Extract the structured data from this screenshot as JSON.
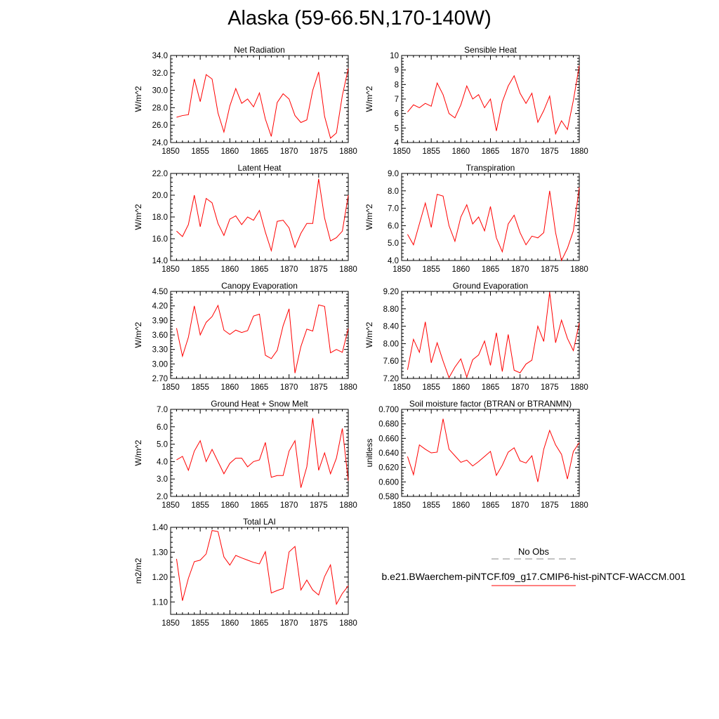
{
  "page": {
    "title": "Alaska (59-66.5N,170-140W)"
  },
  "legend": {
    "obs_label": "No Obs",
    "obs_line_color": "#888888",
    "model_label": "b.e21.BWaerchem-piNTCF.f09_g17.CMIP6-hist-piNTCF-WACCM.001",
    "model_line_color": "#ff0000"
  },
  "chart_data": [
    {
      "type": "line",
      "title": "Net Radiation",
      "ylabel": "W/m^2",
      "ylim": [
        24.0,
        34.0
      ],
      "yticks": [
        "24.0",
        "26.0",
        "28.0",
        "30.0",
        "32.0",
        "34.0"
      ],
      "xlim": [
        1850,
        1880
      ],
      "xticks": [
        "1850",
        "1855",
        "1860",
        "1865",
        "1870",
        "1875",
        "1880"
      ],
      "color": "#ff0000",
      "x": [
        1851,
        1852,
        1853,
        1854,
        1855,
        1856,
        1857,
        1858,
        1859,
        1860,
        1861,
        1862,
        1863,
        1864,
        1865,
        1866,
        1867,
        1868,
        1869,
        1870,
        1871,
        1872,
        1873,
        1874,
        1875,
        1876,
        1877,
        1878,
        1879,
        1880
      ],
      "values": [
        26.9,
        27.1,
        27.2,
        31.3,
        28.7,
        31.8,
        31.3,
        27.4,
        25.2,
        28.2,
        30.2,
        28.5,
        29.0,
        28.1,
        29.7,
        26.7,
        24.7,
        28.6,
        29.6,
        29.0,
        27.1,
        26.3,
        26.6,
        30.0,
        32.1,
        27.0,
        24.5,
        25.1,
        29.4,
        32.5
      ]
    },
    {
      "type": "line",
      "title": "Sensible Heat",
      "ylabel": "W/m^2",
      "ylim": [
        4,
        10
      ],
      "yticks": [
        "4",
        "5",
        "6",
        "7",
        "8",
        "9",
        "10"
      ],
      "xlim": [
        1850,
        1880
      ],
      "xticks": [
        "1850",
        "1855",
        "1860",
        "1865",
        "1870",
        "1875",
        "1880"
      ],
      "color": "#ff0000",
      "x": [
        1851,
        1852,
        1853,
        1854,
        1855,
        1856,
        1857,
        1858,
        1859,
        1860,
        1861,
        1862,
        1863,
        1864,
        1865,
        1866,
        1867,
        1868,
        1869,
        1870,
        1871,
        1872,
        1873,
        1874,
        1875,
        1876,
        1877,
        1878,
        1879,
        1880
      ],
      "values": [
        6.1,
        6.6,
        6.4,
        6.7,
        6.5,
        8.1,
        7.3,
        6.0,
        5.7,
        6.6,
        7.9,
        7.0,
        7.3,
        6.4,
        7.0,
        4.8,
        6.8,
        7.9,
        8.6,
        7.4,
        6.7,
        7.4,
        5.4,
        6.2,
        7.2,
        4.6,
        5.5,
        4.9,
        6.9,
        9.3
      ]
    },
    {
      "type": "line",
      "title": "Latent Heat",
      "ylabel": "W/m^2",
      "ylim": [
        14.0,
        22.0
      ],
      "yticks": [
        "14.0",
        "16.0",
        "18.0",
        "20.0",
        "22.0"
      ],
      "xlim": [
        1850,
        1880
      ],
      "xticks": [
        "1850",
        "1855",
        "1860",
        "1865",
        "1870",
        "1875",
        "1880"
      ],
      "color": "#ff0000",
      "x": [
        1851,
        1852,
        1853,
        1854,
        1855,
        1856,
        1857,
        1858,
        1859,
        1860,
        1861,
        1862,
        1863,
        1864,
        1865,
        1866,
        1867,
        1868,
        1869,
        1870,
        1871,
        1872,
        1873,
        1874,
        1875,
        1876,
        1877,
        1878,
        1879,
        1880
      ],
      "values": [
        16.7,
        16.2,
        17.3,
        20.0,
        17.1,
        19.7,
        19.3,
        17.4,
        16.3,
        17.8,
        18.1,
        17.3,
        18.0,
        17.7,
        18.6,
        16.6,
        14.9,
        17.6,
        17.7,
        17.0,
        15.2,
        16.5,
        17.4,
        17.4,
        21.5,
        17.9,
        15.8,
        16.1,
        16.7,
        20.0
      ]
    },
    {
      "type": "line",
      "title": "Transpiration",
      "ylabel": "W/m^2",
      "ylim": [
        4.0,
        9.0
      ],
      "yticks": [
        "4.0",
        "5.0",
        "6.0",
        "7.0",
        "8.0",
        "9.0"
      ],
      "xlim": [
        1850,
        1880
      ],
      "xticks": [
        "1850",
        "1855",
        "1860",
        "1865",
        "1870",
        "1875",
        "1880"
      ],
      "color": "#ff0000",
      "x": [
        1851,
        1852,
        1853,
        1854,
        1855,
        1856,
        1857,
        1858,
        1859,
        1860,
        1861,
        1862,
        1863,
        1864,
        1865,
        1866,
        1867,
        1868,
        1869,
        1870,
        1871,
        1872,
        1873,
        1874,
        1875,
        1876,
        1877,
        1878,
        1879,
        1880
      ],
      "values": [
        5.5,
        4.9,
        6.1,
        7.3,
        5.9,
        7.8,
        7.7,
        6.0,
        5.1,
        6.5,
        7.2,
        6.1,
        6.5,
        5.7,
        7.1,
        5.3,
        4.5,
        6.1,
        6.6,
        5.6,
        4.9,
        5.4,
        5.3,
        5.6,
        8.0,
        5.6,
        4.0,
        4.7,
        5.7,
        8.2
      ]
    },
    {
      "type": "line",
      "title": "Canopy Evaporation",
      "ylabel": "W/m^2",
      "ylim": [
        2.7,
        4.5
      ],
      "yticks": [
        "2.70",
        "3.00",
        "3.30",
        "3.60",
        "3.90",
        "4.20",
        "4.50"
      ],
      "xlim": [
        1850,
        1880
      ],
      "xticks": [
        "1850",
        "1855",
        "1860",
        "1865",
        "1870",
        "1875",
        "1880"
      ],
      "color": "#ff0000",
      "x": [
        1851,
        1852,
        1853,
        1854,
        1855,
        1856,
        1857,
        1858,
        1859,
        1860,
        1861,
        1862,
        1863,
        1864,
        1865,
        1866,
        1867,
        1868,
        1869,
        1870,
        1871,
        1872,
        1873,
        1874,
        1875,
        1876,
        1877,
        1878,
        1879,
        1880
      ],
      "values": [
        3.74,
        3.16,
        3.55,
        4.2,
        3.6,
        3.86,
        3.98,
        4.21,
        3.7,
        3.61,
        3.7,
        3.65,
        3.69,
        3.99,
        4.03,
        3.18,
        3.11,
        3.28,
        3.79,
        4.14,
        2.81,
        3.36,
        3.72,
        3.68,
        4.22,
        4.19,
        3.23,
        3.3,
        3.24,
        3.73
      ]
    },
    {
      "type": "line",
      "title": "Ground Evaporation",
      "ylabel": "W/m^2",
      "ylim": [
        7.2,
        9.2
      ],
      "yticks": [
        "7.20",
        "7.60",
        "8.00",
        "8.40",
        "8.80",
        "9.20"
      ],
      "xlim": [
        1850,
        1880
      ],
      "xticks": [
        "1850",
        "1855",
        "1860",
        "1865",
        "1870",
        "1875",
        "1880"
      ],
      "color": "#ff0000",
      "x": [
        1851,
        1852,
        1853,
        1854,
        1855,
        1856,
        1857,
        1858,
        1859,
        1860,
        1861,
        1862,
        1863,
        1864,
        1865,
        1866,
        1867,
        1868,
        1869,
        1870,
        1871,
        1872,
        1873,
        1874,
        1875,
        1876,
        1877,
        1878,
        1879,
        1880
      ],
      "values": [
        7.4,
        8.1,
        7.8,
        8.5,
        7.56,
        8.02,
        7.6,
        7.22,
        7.46,
        7.65,
        7.23,
        7.63,
        7.74,
        8.06,
        7.5,
        8.25,
        7.36,
        8.21,
        7.39,
        7.33,
        7.53,
        7.62,
        8.4,
        8.05,
        9.18,
        8.02,
        8.54,
        8.12,
        7.84,
        8.48
      ]
    },
    {
      "type": "line",
      "title": "Ground Heat + Snow Melt",
      "ylabel": "W/m^2",
      "ylim": [
        2.0,
        7.0
      ],
      "yticks": [
        "2.0",
        "3.0",
        "4.0",
        "5.0",
        "6.0",
        "7.0"
      ],
      "xlim": [
        1850,
        1880
      ],
      "xticks": [
        "1850",
        "1855",
        "1860",
        "1865",
        "1870",
        "1875",
        "1880"
      ],
      "color": "#ff0000",
      "x": [
        1851,
        1852,
        1853,
        1854,
        1855,
        1856,
        1857,
        1858,
        1859,
        1860,
        1861,
        1862,
        1863,
        1864,
        1865,
        1866,
        1867,
        1868,
        1869,
        1870,
        1871,
        1872,
        1873,
        1874,
        1875,
        1876,
        1877,
        1878,
        1879,
        1880
      ],
      "values": [
        4.1,
        4.3,
        3.5,
        4.6,
        5.2,
        4.0,
        4.7,
        4.0,
        3.3,
        3.9,
        4.2,
        4.2,
        3.7,
        4.0,
        4.1,
        5.1,
        3.1,
        3.2,
        3.2,
        4.6,
        5.2,
        2.5,
        3.7,
        6.5,
        3.5,
        4.5,
        3.3,
        4.2,
        5.9,
        2.9
      ]
    },
    {
      "type": "line",
      "title": "Soil moisture factor (BTRAN or BTRANMN)",
      "ylabel": "unitless",
      "ylim": [
        0.58,
        0.7
      ],
      "yticks": [
        "0.580",
        "0.600",
        "0.620",
        "0.640",
        "0.660",
        "0.680",
        "0.700"
      ],
      "xlim": [
        1850,
        1880
      ],
      "xticks": [
        "1850",
        "1855",
        "1860",
        "1865",
        "1870",
        "1875",
        "1880"
      ],
      "color": "#ff0000",
      "x": [
        1851,
        1852,
        1853,
        1854,
        1855,
        1856,
        1857,
        1858,
        1859,
        1860,
        1861,
        1862,
        1863,
        1864,
        1865,
        1866,
        1867,
        1868,
        1869,
        1870,
        1871,
        1872,
        1873,
        1874,
        1875,
        1876,
        1877,
        1878,
        1879,
        1880
      ],
      "values": [
        0.635,
        0.61,
        0.651,
        0.645,
        0.64,
        0.641,
        0.687,
        0.645,
        0.636,
        0.627,
        0.63,
        0.622,
        0.628,
        0.635,
        0.642,
        0.609,
        0.623,
        0.641,
        0.647,
        0.629,
        0.626,
        0.636,
        0.6,
        0.645,
        0.671,
        0.651,
        0.638,
        0.604,
        0.642,
        0.654
      ]
    },
    {
      "type": "line",
      "title": "Total LAI",
      "ylabel": "m2/m2",
      "ylim": [
        1.05,
        1.4
      ],
      "yticks": [
        "1.10",
        "1.20",
        "1.30",
        "1.40"
      ],
      "xlim": [
        1850,
        1880
      ],
      "xticks": [
        "1850",
        "1855",
        "1860",
        "1865",
        "1870",
        "1875",
        "1880"
      ],
      "color": "#ff0000",
      "x": [
        1851,
        1852,
        1853,
        1854,
        1855,
        1856,
        1857,
        1858,
        1859,
        1860,
        1861,
        1862,
        1863,
        1864,
        1865,
        1866,
        1867,
        1868,
        1869,
        1870,
        1871,
        1872,
        1873,
        1874,
        1875,
        1876,
        1877,
        1878,
        1879,
        1880
      ],
      "values": [
        1.273,
        1.105,
        1.195,
        1.262,
        1.268,
        1.293,
        1.387,
        1.383,
        1.281,
        1.248,
        1.287,
        1.277,
        1.268,
        1.259,
        1.253,
        1.302,
        1.136,
        1.146,
        1.154,
        1.301,
        1.323,
        1.148,
        1.188,
        1.148,
        1.128,
        1.202,
        1.249,
        1.091,
        1.134,
        1.165
      ]
    }
  ]
}
